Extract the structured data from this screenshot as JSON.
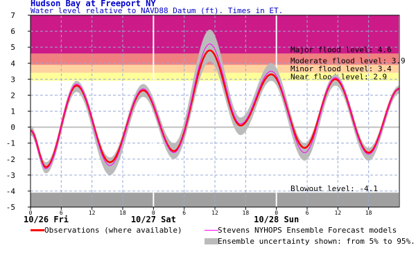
{
  "header": {
    "title": "Hudson Bay at Freeport NY",
    "subtitle": "Water level relative to NAVD88 Datum (ft). Times in ET."
  },
  "chart_data": {
    "type": "line",
    "title": "Hudson Bay at Freeport NY",
    "subtitle": "Water level relative to NAVD88 Datum (ft). Times in ET.",
    "ylim": [
      -5,
      7
    ],
    "xlim_hours": [
      0,
      72
    ],
    "y_ticks": [
      "-5",
      "-4",
      "-3",
      "-2",
      "-1",
      "0",
      "1",
      "2",
      "3",
      "4",
      "5",
      "6",
      "7"
    ],
    "x_ticks": [
      "0",
      "6",
      "12",
      "18",
      "0",
      "6",
      "12",
      "18",
      "0",
      "6",
      "12",
      "18"
    ],
    "day_labels": [
      {
        "label": "10/26 Fri",
        "hour": 0
      },
      {
        "label": "10/27 Sat",
        "hour": 24
      },
      {
        "label": "10/28 Sun",
        "hour": 48
      }
    ],
    "grid": true,
    "flood_levels": [
      {
        "label": "Major flood level: 4.6",
        "value": 4.6,
        "color": "#cc1a88"
      },
      {
        "label": "Moderate flood level: 3.9",
        "value": 3.9,
        "color": "#f08080"
      },
      {
        "label": "Minor flood level: 3.4",
        "value": 3.4,
        "color": "#ffd2a0"
      },
      {
        "label": "Near flood level: 2.9",
        "value": 2.9,
        "color": "#ffff99"
      },
      {
        "label": "Blowout level: -4.1",
        "value": -4.1,
        "color": "#a0a0a0"
      }
    ],
    "series": [
      {
        "name": "Observations (where available)",
        "color": "#ff0000",
        "x": [
          0,
          3,
          9,
          15.5,
          22,
          28,
          35,
          41,
          47,
          53.5,
          59.5,
          66,
          72
        ],
        "y": [
          -0.2,
          -2.5,
          2.6,
          -2.2,
          2.3,
          -1.5,
          4.8,
          0.1,
          3.3,
          -1.3,
          3.0,
          -1.6,
          2.4
        ]
      },
      {
        "name": "Stevens NYHOPS Ensemble Forecast models",
        "color": "#ff00ff",
        "x": [
          0,
          3,
          9,
          15.5,
          22,
          28,
          35,
          41,
          47,
          53.5,
          59.5,
          66,
          72
        ],
        "y": [
          -0.2,
          -2.6,
          2.7,
          -2.4,
          2.4,
          -1.6,
          5.2,
          0.2,
          3.5,
          -1.6,
          3.1,
          -1.7,
          2.4
        ]
      }
    ],
    "uncertainty_band": {
      "name": "Ensemble uncertainty shown: from 5% to 95%.",
      "color": "#bbbbbb",
      "x": [
        0,
        3,
        9,
        15.5,
        22,
        28,
        35,
        41,
        47,
        53.5,
        59.5,
        66,
        72
      ],
      "low": [
        -0.5,
        -2.9,
        2.2,
        -3.0,
        1.9,
        -2.0,
        4.1,
        -0.5,
        2.9,
        -2.1,
        2.6,
        -2.1,
        2.1
      ],
      "high": [
        0.1,
        -2.2,
        2.9,
        -1.9,
        2.7,
        -1.0,
        6.1,
        0.6,
        4.0,
        -1.0,
        3.3,
        -1.3,
        2.6
      ]
    }
  },
  "legend": {
    "observations": "Observations (where available)",
    "forecast": "Stevens NYHOPS Ensemble Forecast models",
    "uncertainty": "Ensemble uncertainty shown: from 5% to 95%."
  }
}
